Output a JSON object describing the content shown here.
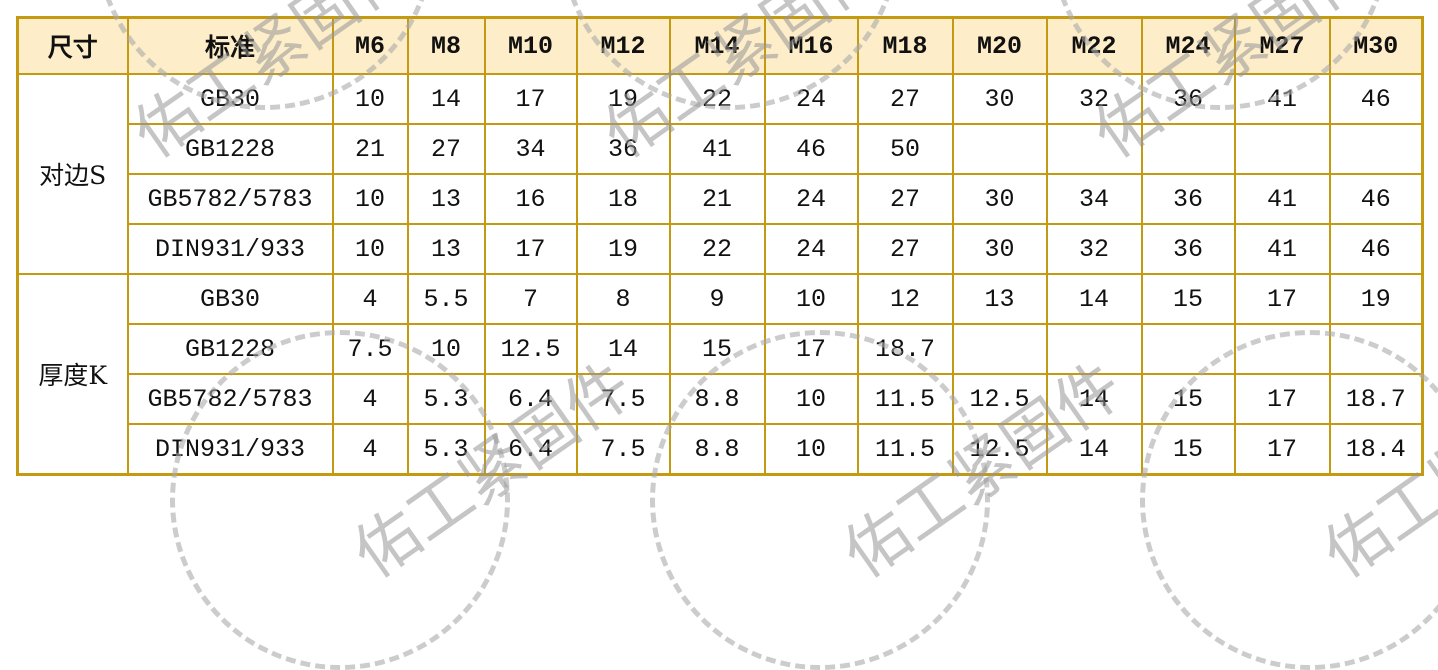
{
  "watermark": "佑工紧固件",
  "header": {
    "size": "尺寸",
    "standard": "标准",
    "sizes": [
      "M6",
      "M8",
      "M10",
      "M12",
      "M14",
      "M16",
      "M18",
      "M20",
      "M22",
      "M24",
      "M27",
      "M30"
    ]
  },
  "groups": [
    {
      "label": "对边S",
      "rows": [
        {
          "standard": "GB30",
          "values": [
            "10",
            "14",
            "17",
            "19",
            "22",
            "24",
            "27",
            "30",
            "32",
            "36",
            "41",
            "46"
          ]
        },
        {
          "standard": "GB1228",
          "values": [
            "21",
            "27",
            "34",
            "36",
            "41",
            "46",
            "50",
            "",
            "",
            "",
            "",
            ""
          ]
        },
        {
          "standard": "GB5782/5783",
          "values": [
            "10",
            "13",
            "16",
            "18",
            "21",
            "24",
            "27",
            "30",
            "34",
            "36",
            "41",
            "46"
          ]
        },
        {
          "standard": "DIN931/933",
          "values": [
            "10",
            "13",
            "17",
            "19",
            "22",
            "24",
            "27",
            "30",
            "32",
            "36",
            "41",
            "46"
          ]
        }
      ]
    },
    {
      "label": "厚度K",
      "rows": [
        {
          "standard": "GB30",
          "values": [
            "4",
            "5.5",
            "7",
            "8",
            "9",
            "10",
            "12",
            "13",
            "14",
            "15",
            "17",
            "19"
          ]
        },
        {
          "standard": "GB1228",
          "values": [
            "7.5",
            "10",
            "12.5",
            "14",
            "15",
            "17",
            "18.7",
            "",
            "",
            "",
            "",
            ""
          ]
        },
        {
          "standard": "GB5782/5783",
          "values": [
            "4",
            "5.3",
            "6.4",
            "7.5",
            "8.8",
            "10",
            "11.5",
            "12.5",
            "14",
            "15",
            "17",
            "18.7"
          ]
        },
        {
          "standard": "DIN931/933",
          "values": [
            "4",
            "5.3",
            "6.4",
            "7.5",
            "8.8",
            "10",
            "11.5",
            "12.5",
            "14",
            "15",
            "17",
            "18.4"
          ]
        }
      ]
    }
  ]
}
